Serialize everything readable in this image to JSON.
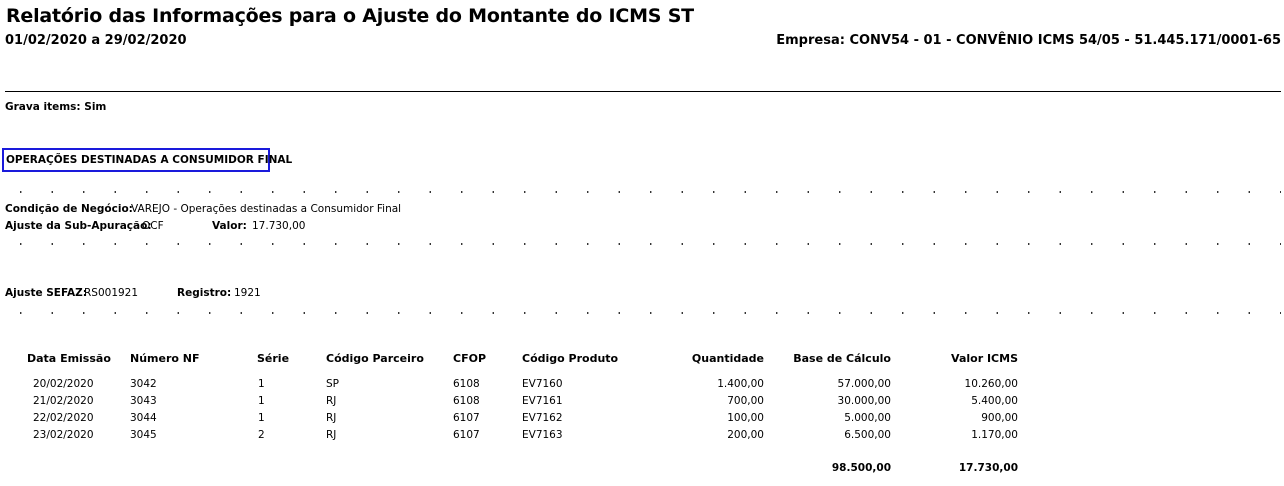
{
  "report": {
    "title": "Relatório das Informações para o Ajuste do Montante do ICMS ST",
    "period": "01/02/2020 a 29/02/2020",
    "company": "Empresa: CONV54 - 01 - CONVÊNIO ICMS 54/05 - 51.445.171/0001-65"
  },
  "grava_items": "Grava items: Sim",
  "section": {
    "title": "OPERAÇÕES DESTINADAS A CONSUMIDOR FINAL"
  },
  "condicao": {
    "label": "Condição de Negócio:",
    "value": "VAREJO - Operações destinadas a Consumidor Final"
  },
  "ajuste_sub": {
    "label": "Ajuste da Sub-Apuração:",
    "value": "OCF",
    "valor_label": "Valor:",
    "valor": "17.730,00"
  },
  "ajuste_sefaz": {
    "label": "Ajuste SEFAZ:",
    "value": "RS001921",
    "registro_label": "Registro:",
    "registro": "1921"
  },
  "table": {
    "headers": {
      "data_emissao": "Data Emissão",
      "numero_nf": "Número NF",
      "serie": "Série",
      "codigo_parceiro": "Código Parceiro",
      "cfop": "CFOP",
      "codigo_produto": "Código Produto",
      "quantidade": "Quantidade",
      "base_calculo": "Base de Cálculo",
      "valor_icms": "Valor ICMS"
    },
    "rows": [
      {
        "data_emissao": "20/02/2020",
        "numero_nf": "3042",
        "serie": "1",
        "codigo_parceiro": "SP",
        "cfop": "6108",
        "codigo_produto": "EV7160",
        "quantidade": "1.400,00",
        "base_calculo": "57.000,00",
        "valor_icms": "10.260,00"
      },
      {
        "data_emissao": "21/02/2020",
        "numero_nf": "3043",
        "serie": "1",
        "codigo_parceiro": "RJ",
        "cfop": "6108",
        "codigo_produto": "EV7161",
        "quantidade": "700,00",
        "base_calculo": "30.000,00",
        "valor_icms": "5.400,00"
      },
      {
        "data_emissao": "22/02/2020",
        "numero_nf": "3044",
        "serie": "1",
        "codigo_parceiro": "RJ",
        "cfop": "6107",
        "codigo_produto": "EV7162",
        "quantidade": "100,00",
        "base_calculo": "5.000,00",
        "valor_icms": "900,00"
      },
      {
        "data_emissao": "23/02/2020",
        "numero_nf": "3045",
        "serie": "2",
        "codigo_parceiro": "RJ",
        "cfop": "6107",
        "codigo_produto": "EV7163",
        "quantidade": "200,00",
        "base_calculo": "6.500,00",
        "valor_icms": "1.170,00"
      }
    ],
    "totals": {
      "base_calculo": "98.500,00",
      "valor_icms": "17.730,00"
    }
  },
  "colors": {
    "section_border": "#1a1adb",
    "text": "#000000"
  }
}
